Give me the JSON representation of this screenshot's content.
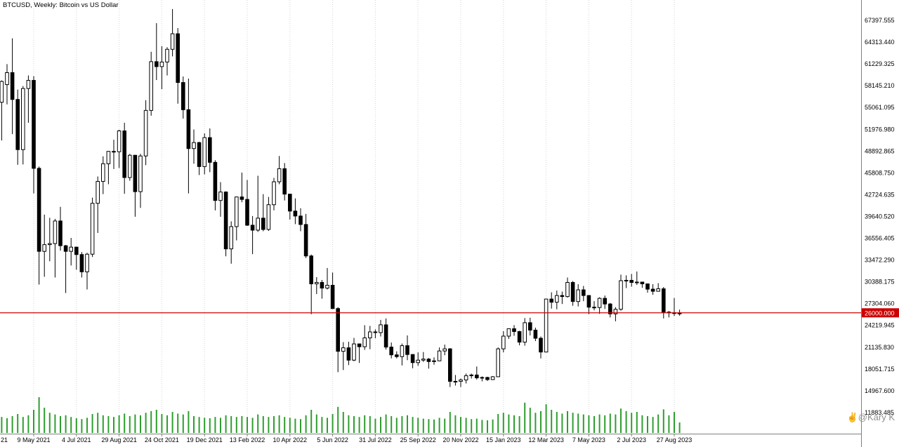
{
  "chart": {
    "header": "BTCUSD, Weekly: Bitcoin vs US Dollar",
    "symbol": "BTCUSD",
    "timeframe": "Weekly",
    "description": "Bitcoin vs US Dollar"
  },
  "watermark": {
    "hand_icon": "✌",
    "text": "@Kary K"
  },
  "colors": {
    "background": "#ffffff",
    "grid": "#d6d6d6",
    "candle_up": "#ffffff",
    "candle_down": "#000000",
    "candle_border": "#000000",
    "volume": "#2e9e2e",
    "hline": "#cc0000",
    "axis_text": "#000000",
    "axis_line": "#808080",
    "watermark": "#8f8f8f"
  },
  "chart_data": {
    "type": "candlestick",
    "title": "BTCUSD, Weekly: Bitcoin vs US Dollar",
    "grid": "vertical-dotted",
    "y_axis": {
      "tick_labels": [
        "67397.555",
        "64313.440",
        "61229.325",
        "58145.210",
        "55061.095",
        "51976.980",
        "48892.865",
        "45808.750",
        "42724.635",
        "39640.520",
        "36556.405",
        "33472.290",
        "30388.175",
        "27304.060",
        "24219.945",
        "21135.830",
        "18051.715",
        "14967.600",
        "11883.485"
      ]
    },
    "x_axis": {
      "labels": [
        {
          "text": "21",
          "week": -2,
          "clipped": true
        },
        {
          "text": "9 May 2021",
          "week": 6
        },
        {
          "text": "4 Jul 2021",
          "week": 14
        },
        {
          "text": "29 Aug 2021",
          "week": 22
        },
        {
          "text": "24 Oct 2021",
          "week": 30
        },
        {
          "text": "19 Dec 2021",
          "week": 38
        },
        {
          "text": "13 Feb 2022",
          "week": 46
        },
        {
          "text": "10 Apr 2022",
          "week": 54
        },
        {
          "text": "5 Jun 2022",
          "week": 62
        },
        {
          "text": "31 Jul 2022",
          "week": 70
        },
        {
          "text": "25 Sep 2022",
          "week": 78
        },
        {
          "text": "20 Nov 2022",
          "week": 86
        },
        {
          "text": "15 Jan 2023",
          "week": 94
        },
        {
          "text": "12 Mar 2023",
          "week": 102
        },
        {
          "text": "7 May 2023",
          "week": 110
        },
        {
          "text": "2 Jul 2023",
          "week": 118
        },
        {
          "text": "27 Aug 2023",
          "week": 126
        }
      ]
    },
    "horizontal_line": {
      "price": 26000.0,
      "label": "26000.000"
    },
    "candles_ohlc": [
      [
        55800,
        58900,
        50400,
        58750
      ],
      [
        58300,
        61200,
        55500,
        60000
      ],
      [
        60000,
        64850,
        51300,
        56200
      ],
      [
        56200,
        57600,
        46950,
        49100
      ],
      [
        49100,
        58100,
        47000,
        57750
      ],
      [
        57750,
        59600,
        52900,
        58900
      ],
      [
        58900,
        59500,
        42900,
        46450
      ],
      [
        46450,
        46700,
        30000,
        34700
      ],
      [
        34700,
        39900,
        31100,
        35650
      ],
      [
        35650,
        39450,
        33300,
        35800
      ],
      [
        35800,
        39300,
        31000,
        39000
      ],
      [
        39000,
        41000,
        34800,
        35500
      ],
      [
        35500,
        35600,
        28800,
        34700
      ],
      [
        34700,
        36600,
        32700,
        35300
      ],
      [
        35300,
        35350,
        32100,
        34250
      ],
      [
        34250,
        34600,
        31000,
        31800
      ],
      [
        31800,
        34500,
        29300,
        34300
      ],
      [
        34300,
        42300,
        33900,
        41500
      ],
      [
        41500,
        45300,
        37300,
        44600
      ],
      [
        44600,
        48150,
        42800,
        47100
      ],
      [
        47100,
        48900,
        44200,
        48850
      ],
      [
        48850,
        50500,
        46350,
        48800
      ],
      [
        48800,
        51900,
        46500,
        51750
      ],
      [
        51750,
        52900,
        42850,
        45150
      ],
      [
        45150,
        48500,
        44700,
        48300
      ],
      [
        48300,
        48350,
        39600,
        43150
      ],
      [
        43150,
        48500,
        40850,
        48200
      ],
      [
        48200,
        56100,
        46900,
        54650
      ],
      [
        54650,
        62950,
        53900,
        61550
      ],
      [
        61550,
        67000,
        58950,
        60850
      ],
      [
        60850,
        63750,
        57650,
        61500
      ],
      [
        61500,
        63600,
        59600,
        63300
      ],
      [
        63300,
        69000,
        62300,
        65500
      ],
      [
        65500,
        66300,
        55600,
        58600
      ],
      [
        58600,
        59450,
        53500,
        54750
      ],
      [
        54750,
        59150,
        42900,
        49250
      ],
      [
        49250,
        51950,
        47100,
        50100
      ],
      [
        50100,
        50200,
        45500,
        46700
      ],
      [
        46700,
        51400,
        45600,
        50800
      ],
      [
        50800,
        52100,
        45900,
        47300
      ],
      [
        47300,
        47600,
        40500,
        41900
      ],
      [
        41900,
        44500,
        39600,
        43100
      ],
      [
        43100,
        43200,
        34000,
        35050
      ],
      [
        35050,
        38950,
        32950,
        38200
      ],
      [
        38200,
        42450,
        36250,
        42400
      ],
      [
        42400,
        45850,
        41650,
        42050
      ],
      [
        42050,
        44800,
        38300,
        38400
      ],
      [
        38400,
        39700,
        34300,
        37700
      ],
      [
        37700,
        45400,
        37450,
        39400
      ],
      [
        39400,
        42800,
        37550,
        37800
      ],
      [
        37800,
        42400,
        37600,
        41300
      ],
      [
        41300,
        45100,
        40500,
        44550
      ],
      [
        44550,
        48200,
        44200,
        46400
      ],
      [
        46400,
        47200,
        41900,
        42800
      ],
      [
        42800,
        42850,
        39200,
        40400
      ],
      [
        40400,
        42200,
        38550,
        39700
      ],
      [
        39700,
        40800,
        37550,
        38500
      ],
      [
        38500,
        40000,
        33750,
        34050
      ],
      [
        34050,
        34250,
        25800,
        30100
      ],
      [
        30100,
        31050,
        28650,
        30300
      ],
      [
        30300,
        30650,
        28000,
        29500
      ],
      [
        29500,
        32350,
        29300,
        29900
      ],
      [
        29900,
        31700,
        26550,
        26600
      ],
      [
        26600,
        26800,
        17600,
        20550
      ],
      [
        20550,
        21850,
        17900,
        21050
      ],
      [
        21050,
        21900,
        18600,
        19300
      ],
      [
        19300,
        22450,
        19150,
        21600
      ],
      [
        21600,
        21650,
        18900,
        21200
      ],
      [
        21200,
        24250,
        20750,
        22450
      ],
      [
        22450,
        24150,
        20850,
        23300
      ],
      [
        23300,
        23650,
        22400,
        23200
      ],
      [
        23200,
        25000,
        22650,
        24300
      ],
      [
        24300,
        25200,
        20800,
        21150
      ],
      [
        21150,
        21800,
        19550,
        20050
      ],
      [
        20050,
        20550,
        19550,
        19800
      ],
      [
        19800,
        21650,
        18550,
        21350
      ],
      [
        21350,
        22800,
        19300,
        20100
      ],
      [
        20100,
        20150,
        18150,
        18950
      ],
      [
        18950,
        20400,
        18500,
        19300
      ],
      [
        19300,
        20450,
        19050,
        19450
      ],
      [
        19450,
        19600,
        18100,
        19100
      ],
      [
        19100,
        19700,
        18650,
        19200
      ],
      [
        19200,
        21100,
        19150,
        20600
      ],
      [
        20600,
        21500,
        20000,
        20900
      ],
      [
        20900,
        21000,
        15500,
        16300
      ],
      [
        16300,
        17200,
        15700,
        16300
      ],
      [
        16300,
        16700,
        15500,
        16500
      ],
      [
        16500,
        17400,
        16000,
        17100
      ],
      [
        17100,
        17400,
        16700,
        17200
      ],
      [
        17200,
        18400,
        16550,
        16800
      ],
      [
        16800,
        17000,
        16300,
        16850
      ],
      [
        16850,
        16950,
        16350,
        16550
      ],
      [
        16550,
        17050,
        16500,
        16950
      ],
      [
        16950,
        21100,
        16900,
        20900
      ],
      [
        20900,
        23400,
        20400,
        22700
      ],
      [
        22700,
        23800,
        22300,
        23750
      ],
      [
        23750,
        24250,
        22750,
        23350
      ],
      [
        23350,
        23450,
        21400,
        21850
      ],
      [
        21850,
        25250,
        21350,
        24600
      ],
      [
        24600,
        25300,
        22800,
        23550
      ],
      [
        23550,
        23900,
        22000,
        22400
      ],
      [
        22400,
        22650,
        19550,
        20450
      ],
      [
        20450,
        28000,
        20400,
        27950
      ],
      [
        27950,
        28900,
        26600,
        27500
      ],
      [
        27500,
        29150,
        26500,
        28450
      ],
      [
        28450,
        29000,
        27250,
        28300
      ],
      [
        28300,
        31000,
        28150,
        30300
      ],
      [
        30300,
        30500,
        27000,
        27600
      ],
      [
        27600,
        30050,
        26900,
        29250
      ],
      [
        29250,
        29800,
        27650,
        28450
      ],
      [
        28450,
        28500,
        25800,
        26800
      ],
      [
        26800,
        27650,
        26350,
        26750
      ],
      [
        26750,
        28200,
        25850,
        28050
      ],
      [
        28050,
        28450,
        26550,
        27250
      ],
      [
        27250,
        27400,
        25350,
        25850
      ],
      [
        25850,
        26800,
        24800,
        26500
      ],
      [
        26500,
        31400,
        26300,
        30550
      ],
      [
        30550,
        31300,
        29500,
        30600
      ],
      [
        30600,
        31500,
        29700,
        30300
      ],
      [
        30300,
        31850,
        29950,
        30350
      ],
      [
        30350,
        30400,
        29550,
        30100
      ],
      [
        30100,
        30150,
        28850,
        29350
      ],
      [
        29350,
        30050,
        28550,
        29050
      ],
      [
        29050,
        30200,
        29000,
        29400
      ],
      [
        29400,
        29650,
        25200,
        26100
      ],
      [
        26100,
        26250,
        25350,
        26000
      ],
      [
        26000,
        28100,
        25550,
        25900
      ],
      [
        25900,
        26450,
        25600,
        25950
      ]
    ],
    "volumes": [
      38,
      35,
      40,
      45,
      38,
      42,
      55,
      85,
      60,
      48,
      44,
      40,
      42,
      38,
      35,
      33,
      36,
      45,
      48,
      42,
      40,
      38,
      42,
      46,
      40,
      44,
      42,
      48,
      52,
      55,
      45,
      42,
      50,
      46,
      44,
      52,
      40,
      38,
      36,
      35,
      38,
      36,
      42,
      40,
      38,
      40,
      38,
      36,
      44,
      40,
      38,
      40,
      42,
      38,
      36,
      34,
      33,
      42,
      55,
      44,
      38,
      36,
      45,
      62,
      50,
      42,
      40,
      38,
      42,
      40,
      34,
      38,
      44,
      40,
      36,
      40,
      42,
      38,
      36,
      34,
      33,
      32,
      36,
      34,
      50,
      42,
      38,
      36,
      33,
      34,
      31,
      30,
      32,
      45,
      48,
      44,
      42,
      40,
      72,
      60,
      48,
      52,
      68,
      55,
      50,
      46,
      52,
      48,
      46,
      44,
      42,
      40,
      44,
      42,
      46,
      44,
      58,
      52,
      48,
      50,
      42,
      40,
      38,
      44,
      56,
      42,
      50,
      25
    ]
  }
}
